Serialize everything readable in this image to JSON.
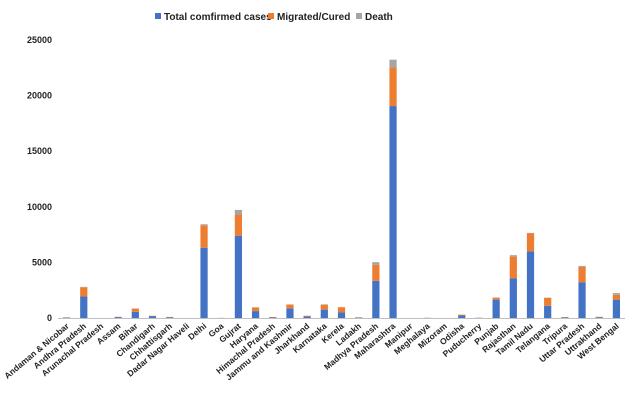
{
  "chart_data": {
    "type": "bar",
    "stacked": true,
    "title": "",
    "xlabel": "",
    "ylabel": "",
    "ylim": [
      0,
      25000
    ],
    "yticks": [
      0,
      5000,
      10000,
      15000,
      20000,
      25000
    ],
    "grid": false,
    "legend_position": "top",
    "categories": [
      "Andaman & Nicobar",
      "Andhra Pradesh",
      "Arunachal Pradesh",
      "Assam",
      "Bihar",
      "Chandigarh",
      "Chhattisgarh",
      "Dadar Nagar Haveli",
      "Delhi",
      "Goa",
      "Gujrat",
      "Haryana",
      "Himachal Pradesh",
      "Jammu and Kashmir",
      "Jharkhand",
      "Karnataka",
      "Kerela",
      "Ladakh",
      "Madhya Pradesh",
      "Maharashtra",
      "Manipur",
      "Meghalaya",
      "Mizoram",
      "Odisha",
      "Puducherry",
      "Punjab",
      "Rajasthan",
      "Tamil Nadu",
      "Telangana",
      "Tripura",
      "Uttar Pradesh",
      "Uttrakhand",
      "West Bengal"
    ],
    "series": [
      {
        "name": "Total comfirmed cases",
        "color": "#4472C4",
        "values": [
          33,
          1930,
          1,
          80,
          550,
          170,
          60,
          1,
          6320,
          7,
          7400,
          620,
          50,
          870,
          150,
          750,
          500,
          40,
          3340,
          19060,
          2,
          12,
          1,
          230,
          20,
          1650,
          3580,
          6000,
          1100,
          60,
          3220,
          70,
          1650
        ]
      },
      {
        "name": "Migrated/Cured",
        "color": "#ED7D31",
        "values": [
          30,
          830,
          1,
          30,
          300,
          30,
          40,
          0,
          2020,
          7,
          1900,
          330,
          40,
          340,
          50,
          450,
          470,
          20,
          1450,
          3470,
          2,
          10,
          0,
          70,
          10,
          170,
          1940,
          1600,
          700,
          20,
          1370,
          40,
          440
        ]
      },
      {
        "name": "Death",
        "color": "#A5A5A5",
        "values": [
          0,
          40,
          0,
          2,
          5,
          1,
          0,
          0,
          90,
          0,
          420,
          10,
          2,
          12,
          3,
          30,
          4,
          0,
          230,
          700,
          0,
          1,
          0,
          2,
          0,
          32,
          130,
          50,
          30,
          0,
          90,
          1,
          150
        ]
      }
    ]
  }
}
